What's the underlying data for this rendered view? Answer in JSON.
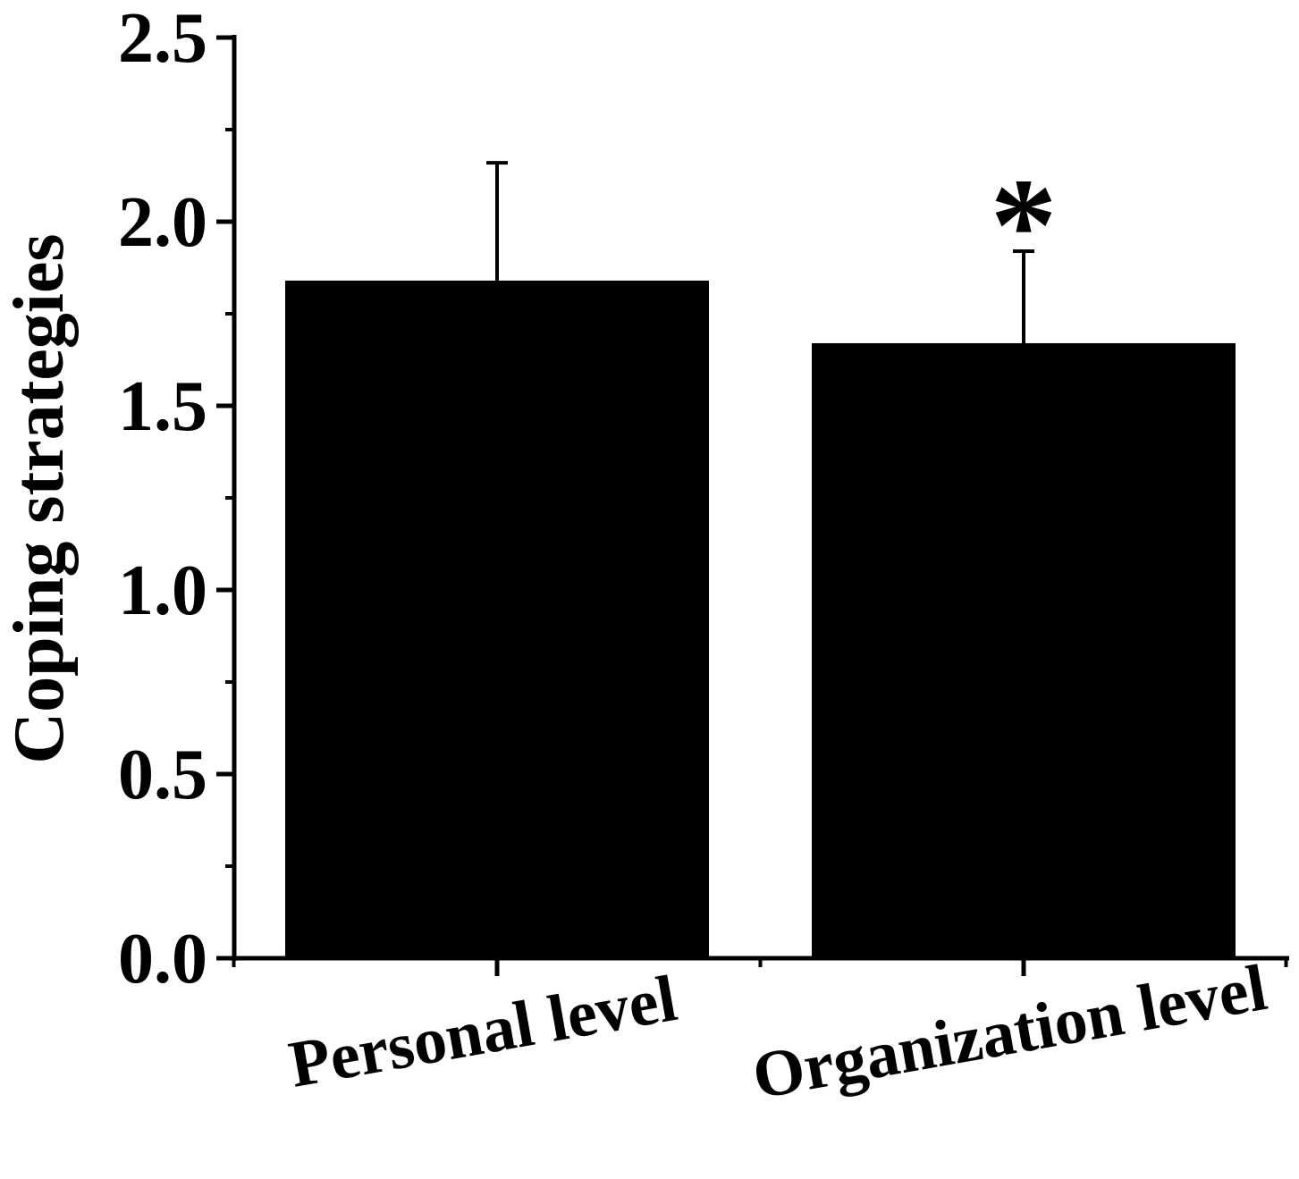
{
  "chart_data": {
    "type": "bar",
    "title": "",
    "xlabel": "",
    "ylabel": "Coping strategies",
    "categories": [
      "Personal level",
      "Organization level"
    ],
    "series": [
      {
        "values": [
          1.84,
          1.67
        ],
        "error_upper": [
          2.16,
          1.92
        ]
      }
    ],
    "ylim": [
      0,
      2.5
    ],
    "yticks": [
      "0.0",
      "0.5",
      "1.0",
      "1.5",
      "2.0",
      "2.5"
    ],
    "yticks_values": [
      0,
      0.5,
      1.0,
      1.5,
      2.0,
      2.5
    ],
    "y_minor_step": 0.25,
    "annotations": [
      {
        "category": "Organization level",
        "text": "*"
      }
    ],
    "grid": false,
    "legend": "none",
    "colors": {
      "bar": "#000000",
      "axis": "#000000",
      "background": "#ffffff"
    }
  }
}
